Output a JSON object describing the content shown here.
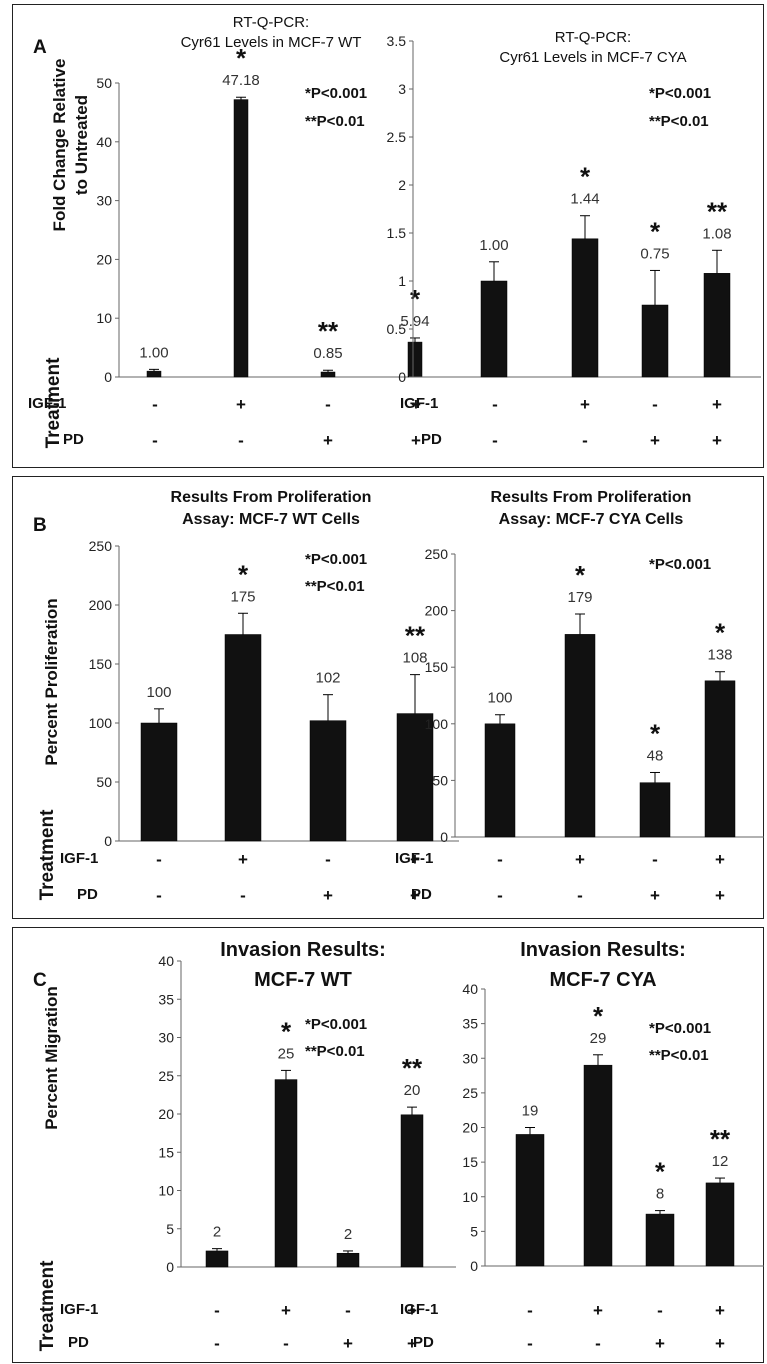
{
  "panels": [
    {
      "letter": "A",
      "ylabel": [
        "Fold Change Relative",
        "to Untreated"
      ],
      "side_label": "Treatment",
      "treatment_rows": [
        {
          "label": "IGF-1",
          "signs": [
            "-",
            "+",
            "-",
            "+"
          ]
        },
        {
          "label": "PD",
          "signs": [
            "-",
            "-",
            "+",
            "+"
          ]
        }
      ],
      "charts": [
        {
          "title": [
            "RT-Q-PCR:",
            "Cyr61 Levels in MCF-7 WT"
          ],
          "type": "bar",
          "categories": [
            "1",
            "2",
            "3",
            "4"
          ],
          "values": [
            1.0,
            47.18,
            0.85,
            5.94
          ],
          "errors": [
            0.3,
            0.4,
            0.3,
            0.7
          ],
          "value_labels": [
            "1.00",
            "47.18",
            "0.85",
            "5.94"
          ],
          "significance": [
            "",
            "*",
            "**",
            "*"
          ],
          "ylim": [
            0,
            50
          ],
          "yticks": [
            "0",
            "10",
            "20",
            "30",
            "40",
            "50"
          ],
          "legend": [
            "*P<0.001",
            "**P<0.01"
          ],
          "bar_color": "#111111"
        },
        {
          "title": [
            "RT-Q-PCR:",
            "Cyr61 Levels in MCF-7 CYA"
          ],
          "type": "bar",
          "categories": [
            "1",
            "2",
            "3",
            "4"
          ],
          "values": [
            1.0,
            1.44,
            0.75,
            1.08
          ],
          "errors": [
            0.2,
            0.24,
            0.36,
            0.24
          ],
          "value_labels": [
            "1.00",
            "1.44",
            "0.75",
            "1.08"
          ],
          "significance": [
            "",
            "*",
            "*",
            "**"
          ],
          "ylim": [
            0,
            3.5
          ],
          "yticks": [
            "0",
            "0.5",
            "1",
            "1.5",
            "2",
            "2.5",
            "3",
            "3.5"
          ],
          "legend": [
            "*P<0.001",
            "**P<0.01"
          ],
          "bar_color": "#111111"
        }
      ]
    },
    {
      "letter": "B",
      "ylabel": [
        "Percent Proliferation"
      ],
      "side_label": "Treatment",
      "treatment_rows": [
        {
          "label": "IGF-1",
          "signs": [
            "-",
            "+",
            "-",
            "+"
          ]
        },
        {
          "label": "PD",
          "signs": [
            "-",
            "-",
            "+",
            "+"
          ]
        }
      ],
      "charts": [
        {
          "title": [
            "Results From Proliferation",
            "Assay:  MCF-7 WT Cells"
          ],
          "type": "bar",
          "categories": [
            "1",
            "2",
            "3",
            "4"
          ],
          "values": [
            100,
            175,
            102,
            108
          ],
          "errors": [
            12,
            18,
            22,
            33
          ],
          "value_labels": [
            "100",
            "175",
            "102",
            "108"
          ],
          "significance": [
            "",
            "*",
            "",
            "**"
          ],
          "ylim": [
            0,
            250
          ],
          "yticks": [
            "0",
            "50",
            "100",
            "150",
            "200",
            "250"
          ],
          "legend": [
            "*P<0.001",
            "**P<0.01"
          ],
          "bar_color": "#111111"
        },
        {
          "title": [
            "Results From Proliferation",
            "Assay:  MCF-7 CYA Cells"
          ],
          "type": "bar",
          "categories": [
            "1",
            "2",
            "3",
            "4"
          ],
          "values": [
            100,
            179,
            48,
            138
          ],
          "errors": [
            8,
            18,
            9,
            8
          ],
          "value_labels": [
            "100",
            "179",
            "48",
            "138"
          ],
          "significance": [
            "",
            "*",
            "*",
            "*"
          ],
          "ylim": [
            0,
            250
          ],
          "yticks": [
            "0",
            "50",
            "100",
            "150",
            "200",
            "250"
          ],
          "legend": [
            "*P<0.001"
          ],
          "bar_color": "#111111"
        }
      ]
    },
    {
      "letter": "C",
      "ylabel": [
        "Percent Migration"
      ],
      "side_label": "Treatment",
      "treatment_rows": [
        {
          "label": "IGF-1",
          "signs": [
            "-",
            "+",
            "-",
            "+"
          ]
        },
        {
          "label": "PD",
          "signs": [
            "-",
            "-",
            "+",
            "+"
          ]
        }
      ],
      "charts": [
        {
          "title": [
            "Invasion Results:",
            "MCF-7 WT"
          ],
          "type": "bar",
          "categories": [
            "1",
            "2",
            "3",
            "4"
          ],
          "values": [
            2.1,
            24.5,
            1.8,
            19.9
          ],
          "errors": [
            0.3,
            1.2,
            0.3,
            1.0
          ],
          "value_labels": [
            "2",
            "25",
            "2",
            "20"
          ],
          "significance": [
            "",
            "*",
            "",
            "**"
          ],
          "ylim": [
            0,
            40
          ],
          "yticks": [
            "0",
            "5",
            "10",
            "15",
            "20",
            "25",
            "30",
            "35",
            "40"
          ],
          "legend": [
            "*P<0.001",
            "**P<0.01"
          ],
          "bar_color": "#111111"
        },
        {
          "title": [
            "Invasion Results:",
            "MCF-7 CYA"
          ],
          "type": "bar",
          "categories": [
            "1",
            "2",
            "3",
            "4"
          ],
          "values": [
            19,
            29,
            7.5,
            12
          ],
          "errors": [
            1.0,
            1.5,
            0.5,
            0.7
          ],
          "value_labels": [
            "19",
            "29",
            "8",
            "12"
          ],
          "significance": [
            "",
            "*",
            "*",
            "**"
          ],
          "ylim": [
            0,
            40
          ],
          "yticks": [
            "0",
            "5",
            "10",
            "15",
            "20",
            "25",
            "30",
            "35",
            "40"
          ],
          "legend": [
            "*P<0.001",
            "**P<0.01"
          ],
          "bar_color": "#111111"
        }
      ]
    }
  ],
  "chart_data": [
    {
      "type": "bar",
      "title": "RT-Q-PCR: Cyr61 Levels in MCF-7 WT",
      "ylabel": "Fold Change Relative to Untreated",
      "categories": [
        "1",
        "2",
        "3",
        "4"
      ],
      "values": [
        1.0,
        47.18,
        0.85,
        5.94
      ],
      "ylim": [
        0,
        50
      ]
    },
    {
      "type": "bar",
      "title": "RT-Q-PCR: Cyr61 Levels in MCF-7 CYA",
      "categories": [
        "1",
        "2",
        "3",
        "4"
      ],
      "values": [
        1.0,
        1.44,
        0.75,
        1.08
      ],
      "ylim": [
        0,
        3.5
      ]
    },
    {
      "type": "bar",
      "title": "Results From Proliferation Assay: MCF-7 WT Cells",
      "ylabel": "Percent Proliferation",
      "categories": [
        "1",
        "2",
        "3",
        "4"
      ],
      "values": [
        100,
        175,
        102,
        108
      ],
      "ylim": [
        0,
        250
      ]
    },
    {
      "type": "bar",
      "title": "Results From Proliferation Assay: MCF-7 CYA Cells",
      "categories": [
        "1",
        "2",
        "3",
        "4"
      ],
      "values": [
        100,
        179,
        48,
        138
      ],
      "ylim": [
        0,
        250
      ]
    },
    {
      "type": "bar",
      "title": "Invasion Results: MCF-7 WT",
      "ylabel": "Percent Migration",
      "categories": [
        "1",
        "2",
        "3",
        "4"
      ],
      "values": [
        2.1,
        24.5,
        1.8,
        19.9
      ],
      "ylim": [
        0,
        40
      ]
    },
    {
      "type": "bar",
      "title": "Invasion Results: MCF-7 CYA",
      "categories": [
        "1",
        "2",
        "3",
        "4"
      ],
      "values": [
        19,
        29,
        7.5,
        12
      ],
      "ylim": [
        0,
        40
      ]
    }
  ]
}
